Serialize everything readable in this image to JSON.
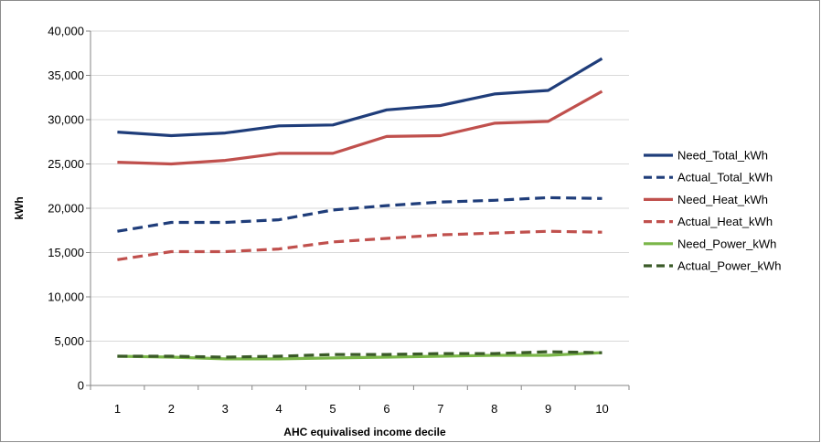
{
  "chart_data": {
    "type": "line",
    "title": "",
    "xlabel": "AHC equivalised income decile",
    "ylabel": "kWh",
    "x": [
      1,
      2,
      3,
      4,
      5,
      6,
      7,
      8,
      9,
      10
    ],
    "ylim": [
      0,
      40000
    ],
    "ytick_labels": [
      "0",
      "5,000",
      "10,000",
      "15,000",
      "20,000",
      "25,000",
      "30,000",
      "35,000",
      "40,000"
    ],
    "grid": "horizontal",
    "legend_position": "right",
    "series": [
      {
        "name": "Need_Total_kWh",
        "color": "#1F3D7A",
        "dash": "solid",
        "values": [
          28600,
          28200,
          28500,
          29300,
          29400,
          31100,
          31600,
          32900,
          33300,
          36900
        ]
      },
      {
        "name": "Actual_Total_kWh",
        "color": "#1F3D7A",
        "dash": "dashed",
        "values": [
          17400,
          18400,
          18400,
          18700,
          19800,
          20300,
          20700,
          20900,
          21200,
          21100
        ]
      },
      {
        "name": "Need_Heat_kWh",
        "color": "#C0504D",
        "dash": "solid",
        "values": [
          25200,
          25000,
          25400,
          26200,
          26200,
          28100,
          28200,
          29600,
          29800,
          33200
        ]
      },
      {
        "name": "Actual_Heat_kWh",
        "color": "#C0504D",
        "dash": "dashed",
        "values": [
          14200,
          15100,
          15100,
          15400,
          16200,
          16600,
          17000,
          17200,
          17400,
          17300
        ]
      },
      {
        "name": "Need_Power_kWh",
        "color": "#7AB648",
        "dash": "solid",
        "values": [
          3300,
          3200,
          3000,
          3000,
          3100,
          3200,
          3300,
          3400,
          3400,
          3700
        ]
      },
      {
        "name": "Actual_Power_kWh",
        "color": "#3A5A28",
        "dash": "dashed",
        "values": [
          3300,
          3300,
          3200,
          3300,
          3500,
          3500,
          3600,
          3600,
          3800,
          3700
        ]
      }
    ]
  }
}
